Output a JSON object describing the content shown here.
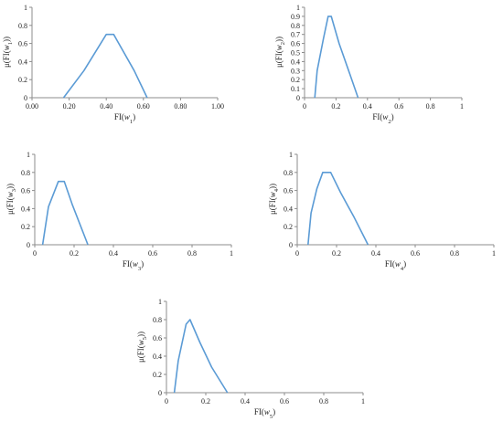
{
  "line_color": "#5b9bd5",
  "chart_data": [
    {
      "type": "line",
      "xlabel": {
        "prefix": "FI(",
        "var": "w",
        "sub": "1",
        "suffix": ")"
      },
      "ylabel": {
        "prefix": "μ(FI(",
        "var": "w",
        "sub": "1",
        "suffix": "))"
      },
      "xlim": [
        0,
        1
      ],
      "ylim": [
        0,
        1
      ],
      "xticks": [
        0,
        0.2,
        0.4,
        0.6,
        0.8,
        1.0
      ],
      "xtick_labels": [
        "0.00",
        "0.20",
        "0.40",
        "0.60",
        "0.80",
        "1.00"
      ],
      "yticks": [
        0,
        0.2,
        0.4,
        0.6,
        0.8,
        1
      ],
      "ytick_labels": [
        "0",
        "0.2",
        "0.4",
        "0.6",
        "0.8",
        "1"
      ],
      "series": [
        {
          "x": [
            0.17,
            0.28,
            0.4,
            0.44,
            0.55,
            0.62
          ],
          "y": [
            0,
            0.3,
            0.7,
            0.7,
            0.3,
            0
          ]
        }
      ]
    },
    {
      "type": "line",
      "xlabel": {
        "prefix": "FI(",
        "var": "w",
        "sub": "2",
        "suffix": ")"
      },
      "ylabel": {
        "prefix": "μ(FI(",
        "var": "w",
        "sub": "2",
        "suffix": "))"
      },
      "xlim": [
        0,
        1
      ],
      "ylim": [
        0,
        1
      ],
      "xticks": [
        0,
        0.2,
        0.4,
        0.6,
        0.8,
        1
      ],
      "xtick_labels": [
        "0",
        "0.2",
        "0.4",
        "0.6",
        "0.8",
        "1"
      ],
      "yticks": [
        0,
        0.1,
        0.2,
        0.3,
        0.4,
        0.5,
        0.6,
        0.7,
        0.8,
        0.9,
        1
      ],
      "ytick_labels": [
        "0",
        "0.1",
        "0.2",
        "0.3",
        "0.4",
        "0.5",
        "0.6",
        "0.7",
        "0.8",
        "0.9",
        "1"
      ],
      "series": [
        {
          "x": [
            0.065,
            0.08,
            0.12,
            0.15,
            0.17,
            0.22,
            0.28,
            0.34
          ],
          "y": [
            0,
            0.3,
            0.65,
            0.9,
            0.9,
            0.6,
            0.3,
            0
          ]
        }
      ]
    },
    {
      "type": "line",
      "xlabel": {
        "prefix": "FI(",
        "var": "w",
        "sub": "3",
        "suffix": ")"
      },
      "ylabel": {
        "prefix": "μ(FI(",
        "var": "w",
        "sub": "3",
        "suffix": "))"
      },
      "xlim": [
        0,
        1
      ],
      "ylim": [
        0,
        1
      ],
      "xticks": [
        0,
        0.2,
        0.4,
        0.6,
        0.8,
        1
      ],
      "xtick_labels": [
        "0",
        "0.2",
        "0.4",
        "0.6",
        "0.8",
        "1"
      ],
      "yticks": [
        0,
        0.2,
        0.4,
        0.6,
        0.8,
        1
      ],
      "ytick_labels": [
        "0",
        "0.2",
        "0.4",
        "0.6",
        "0.8",
        "1"
      ],
      "series": [
        {
          "x": [
            0.04,
            0.07,
            0.12,
            0.15,
            0.19,
            0.27
          ],
          "y": [
            0,
            0.42,
            0.7,
            0.7,
            0.45,
            0
          ]
        }
      ]
    },
    {
      "type": "line",
      "xlabel": {
        "prefix": "FI(",
        "var": "w",
        "sub": "4",
        "suffix": ")"
      },
      "ylabel": {
        "prefix": "μ(FI(",
        "var": "w",
        "sub": "4",
        "suffix": "))"
      },
      "xlim": [
        0,
        1
      ],
      "ylim": [
        0,
        1
      ],
      "xticks": [
        0,
        0.2,
        0.4,
        0.6,
        0.8,
        1
      ],
      "xtick_labels": [
        "0",
        "0.2",
        "0.4",
        "0.6",
        "0.8",
        "1"
      ],
      "yticks": [
        0,
        0.2,
        0.4,
        0.6,
        0.8,
        1
      ],
      "ytick_labels": [
        "0",
        "0.2",
        "0.4",
        "0.6",
        "0.8",
        "1"
      ],
      "series": [
        {
          "x": [
            0.055,
            0.07,
            0.1,
            0.13,
            0.17,
            0.22,
            0.29,
            0.36
          ],
          "y": [
            0,
            0.35,
            0.62,
            0.8,
            0.8,
            0.58,
            0.3,
            0
          ]
        }
      ]
    },
    {
      "type": "line",
      "xlabel": {
        "prefix": "FI(",
        "var": "w",
        "sub": "5",
        "suffix": ")"
      },
      "ylabel": {
        "prefix": "μ(FI(",
        "var": "w",
        "sub": "5",
        "suffix": "))"
      },
      "xlim": [
        0,
        1
      ],
      "ylim": [
        0,
        1
      ],
      "xticks": [
        0,
        0.2,
        0.4,
        0.6,
        0.8,
        1
      ],
      "xtick_labels": [
        "0",
        "0.2",
        "0.4",
        "0.6",
        "0.8",
        "1"
      ],
      "yticks": [
        0,
        0.2,
        0.4,
        0.6,
        0.8,
        1
      ],
      "ytick_labels": [
        "0",
        "0.2",
        "0.4",
        "0.6",
        "0.8",
        "1"
      ],
      "series": [
        {
          "x": [
            0.04,
            0.06,
            0.1,
            0.12,
            0.17,
            0.23,
            0.31
          ],
          "y": [
            0,
            0.35,
            0.75,
            0.8,
            0.55,
            0.28,
            0
          ]
        }
      ]
    }
  ]
}
